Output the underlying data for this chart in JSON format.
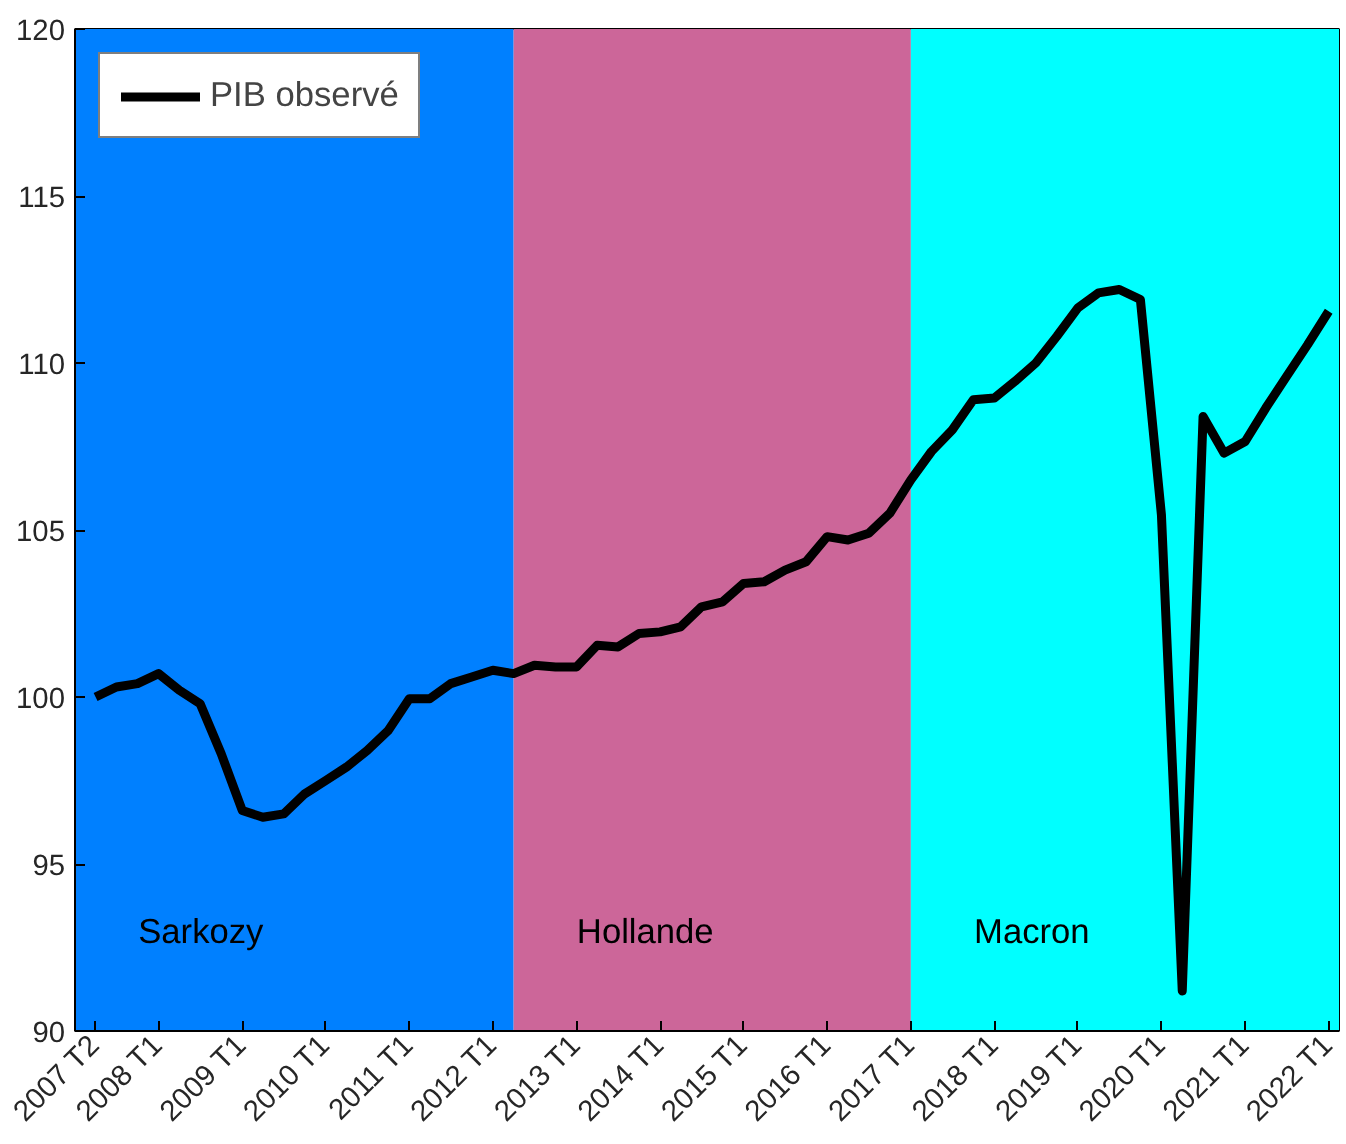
{
  "chart_data": {
    "type": "line",
    "x": [
      "2007-04",
      "2007-07",
      "2007-10",
      "2008-01",
      "2008-04",
      "2008-07",
      "2008-10",
      "2009-01",
      "2009-04",
      "2009-07",
      "2009-10",
      "2010-01",
      "2010-04",
      "2010-07",
      "2010-10",
      "2011-01",
      "2011-04",
      "2011-07",
      "2011-10",
      "2012-01",
      "2012-04",
      "2012-07",
      "2012-10",
      "2013-01",
      "2013-04",
      "2013-07",
      "2013-10",
      "2014-01",
      "2014-04",
      "2014-07",
      "2014-10",
      "2015-01",
      "2015-04",
      "2015-07",
      "2015-10",
      "2016-01",
      "2016-04",
      "2016-07",
      "2016-10",
      "2017-01",
      "2017-04",
      "2017-07",
      "2017-10",
      "2018-01",
      "2018-04",
      "2018-07",
      "2018-10",
      "2019-01",
      "2019-04",
      "2019-07",
      "2019-10",
      "2020-01",
      "2020-04",
      "2020-07",
      "2020-10",
      "2021-01",
      "2021-04",
      "2021-07",
      "2021-10",
      "2022-01"
    ],
    "series": [
      {
        "name": "PIB observé",
        "color": "#000000",
        "values": [
          100.0,
          100.3,
          100.4,
          100.7,
          100.2,
          99.8,
          98.3,
          96.6,
          96.4,
          96.5,
          97.1,
          97.5,
          97.9,
          98.4,
          99.0,
          99.95,
          99.95,
          100.4,
          100.6,
          100.8,
          100.7,
          100.95,
          100.9,
          100.9,
          101.55,
          101.5,
          101.9,
          101.95,
          102.1,
          102.7,
          102.85,
          103.4,
          103.45,
          103.8,
          104.05,
          104.8,
          104.7,
          104.9,
          105.5,
          106.5,
          107.35,
          108.0,
          108.9,
          108.95,
          109.45,
          110.0,
          110.8,
          111.65,
          112.1,
          112.2,
          111.9,
          105.45,
          91.2,
          108.4,
          107.3,
          107.65,
          108.65,
          109.6,
          110.55,
          111.55
        ]
      }
    ],
    "xlim": [
      "2007-01",
      "2022-02-15"
    ],
    "xticks": [
      {
        "value": "2007-04",
        "label": "2007 T2"
      },
      {
        "value": "2008-01",
        "label": "2008 T1"
      },
      {
        "value": "2009-01",
        "label": "2009 T1"
      },
      {
        "value": "2010-01",
        "label": "2010 T1"
      },
      {
        "value": "2011-01",
        "label": "2011 T1"
      },
      {
        "value": "2012-01",
        "label": "2012 T1"
      },
      {
        "value": "2013-01",
        "label": "2013 T1"
      },
      {
        "value": "2014-01",
        "label": "2014 T1"
      },
      {
        "value": "2015-01",
        "label": "2015 T1"
      },
      {
        "value": "2016-01",
        "label": "2016 T1"
      },
      {
        "value": "2017-01",
        "label": "2017 T1"
      },
      {
        "value": "2018-01",
        "label": "2018 T1"
      },
      {
        "value": "2019-01",
        "label": "2019 T1"
      },
      {
        "value": "2020-01",
        "label": "2020 T1"
      },
      {
        "value": "2021-01",
        "label": "2021 T1"
      },
      {
        "value": "2022-01",
        "label": "2022 T1"
      }
    ],
    "ylim": [
      90,
      120
    ],
    "yticks": [
      90,
      95,
      100,
      105,
      110,
      115,
      120
    ],
    "bands": [
      {
        "axis": "x",
        "from": "2007-01",
        "to": "2012-04",
        "label": "Sarkozy",
        "color": "#0080ff"
      },
      {
        "axis": "x",
        "from": "2012-04",
        "to": "2017-01",
        "label": "Hollande",
        "color": "#cc6699"
      },
      {
        "axis": "x",
        "from": "2017-01",
        "to": "2022-02-15",
        "label": "Macron",
        "color": "#00ffff"
      }
    ],
    "grid": false,
    "legend": "top left",
    "marker": "none",
    "line_style": "solid"
  }
}
